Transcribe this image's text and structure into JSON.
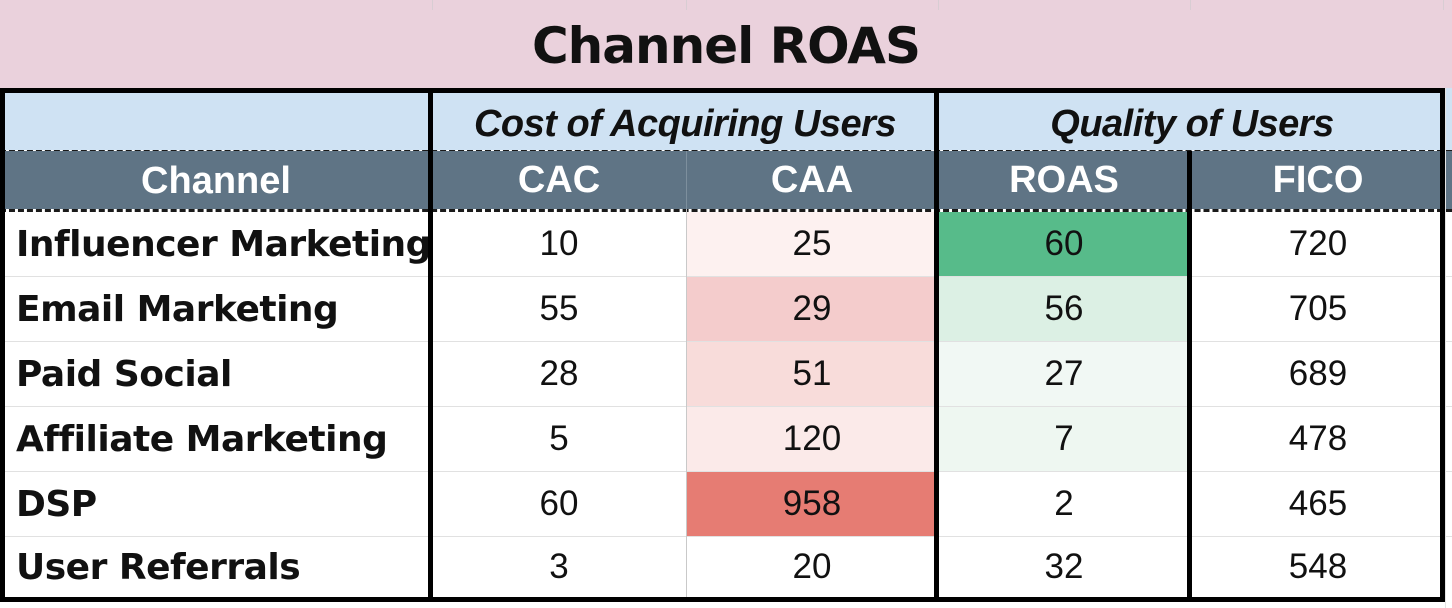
{
  "title": "Channel ROAS",
  "groups": {
    "cost": "Cost of Acquiring Users",
    "quality": "Quality of Users"
  },
  "headers": {
    "channel": "Channel",
    "cac": "CAC",
    "caa": "CAA",
    "roas": "ROAS",
    "fico": "FICO"
  },
  "rows": [
    {
      "channel": "Influencer Marketing",
      "cac": "10",
      "caa": "25",
      "roas": "60",
      "fico": "720",
      "caa_bg": "#fdf1f0",
      "roas_bg": "#57bb8a"
    },
    {
      "channel": "Email Marketing",
      "cac": "55",
      "caa": "29",
      "roas": "56",
      "fico": "705",
      "caa_bg": "#f4cccc",
      "roas_bg": "#dcf0e4"
    },
    {
      "channel": "Paid Social",
      "cac": "28",
      "caa": "51",
      "roas": "27",
      "fico": "689",
      "caa_bg": "#f8dcda",
      "roas_bg": "#f1f8f4"
    },
    {
      "channel": "Affiliate Marketing",
      "cac": "5",
      "caa": "120",
      "roas": "7",
      "fico": "478",
      "caa_bg": "#fbeae9",
      "roas_bg": "#eef7f1"
    },
    {
      "channel": "DSP",
      "cac": "60",
      "caa": "958",
      "roas": "2",
      "fico": "465",
      "caa_bg": "#e67c73",
      "roas_bg": "#ffffff"
    },
    {
      "channel": "User Referrals",
      "cac": "3",
      "caa": "20",
      "roas": "32",
      "fico": "548",
      "caa_bg": "#ffffff",
      "roas_bg": "#ffffff"
    }
  ],
  "colors": {
    "title_bg": "#ead1dc",
    "group_bg": "#cfe2f3",
    "header_bg": "#5f7485"
  }
}
